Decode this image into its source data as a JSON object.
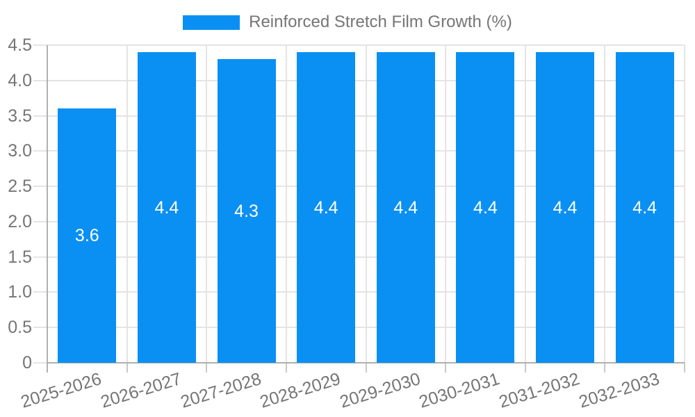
{
  "chart_data": {
    "type": "bar",
    "title": "",
    "legend": {
      "label": "Reinforced Stretch Film Growth (%)",
      "position": "top-center"
    },
    "categories": [
      "2025-2026",
      "2026-2027",
      "2027-2028",
      "2028-2029",
      "2029-2030",
      "2030-2031",
      "2031-2032",
      "2032-2033"
    ],
    "series": [
      {
        "name": "Reinforced Stretch Film Growth (%)",
        "values": [
          3.6,
          4.4,
          4.3,
          4.4,
          4.4,
          4.4,
          4.4,
          4.4
        ]
      }
    ],
    "value_labels": [
      "3.6",
      "4.4",
      "4.3",
      "4.4",
      "4.4",
      "4.4",
      "4.4",
      "4.4"
    ],
    "xlabel": "",
    "ylabel": "",
    "ylim": [
      0,
      4.5
    ],
    "ytick_step": 0.5,
    "ytick_labels": [
      "0",
      "0.5",
      "1.0",
      "1.5",
      "2.0",
      "2.5",
      "3.0",
      "3.5",
      "4.0",
      "4.5"
    ],
    "grid": true,
    "x_label_rotation_deg": -17,
    "colors": {
      "bar": "#0a90f2",
      "axis": "#b0b0b0",
      "grid": "#e4e4e4",
      "tick": "#c9c9c9",
      "label_text": "#757575",
      "value_text": "#ffffff",
      "background": "#ffffff"
    }
  }
}
